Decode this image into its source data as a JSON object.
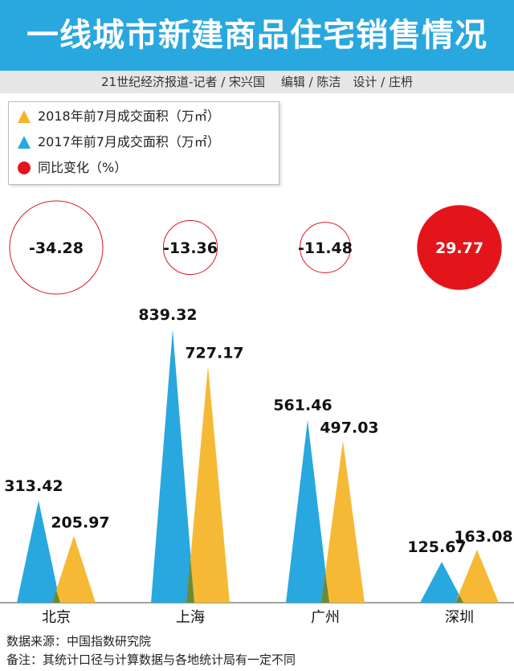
{
  "title": "一线城市新建商品住宅销售情况",
  "credit": "21世纪经济报道-记者 / 宋兴国　 编辑 / 陈洁　设计 / 庄枬",
  "legend": [
    {
      "label": "2018年前7月成交面积（万㎡）",
      "marker": "triangle",
      "color": "#f5b52b"
    },
    {
      "label": "2017年前7月成交面积（万㎡）",
      "marker": "triangle",
      "color": "#29a7df"
    },
    {
      "label": "同比变化（%）",
      "marker": "circle",
      "color": "#e3151a"
    }
  ],
  "footer": {
    "source": "数据来源：中国指数研究院",
    "note": "备注：其统计口径与计算数据与各地统计局有一定不同"
  },
  "colors": {
    "y2017": "#29a7df",
    "y2018": "#f5b52b",
    "change": "#e3151a",
    "overlap": "#6a8a3a",
    "header": "#29a7df"
  },
  "chart_data": {
    "type": "bar",
    "categories": [
      "北京",
      "上海",
      "广州",
      "深圳"
    ],
    "series": [
      {
        "name": "2017年前7月成交面积（万㎡）",
        "values": [
          313.42,
          839.32,
          561.46,
          125.67
        ]
      },
      {
        "name": "2018年前7月成交面积（万㎡）",
        "values": [
          205.97,
          727.17,
          497.03,
          163.08
        ]
      },
      {
        "name": "同比变化（%）",
        "values": [
          -34.28,
          -13.36,
          -11.48,
          29.77
        ]
      }
    ],
    "value_labels_2017": [
      "313.42",
      "839.32",
      "561.46",
      "125.67"
    ],
    "value_labels_2018": [
      "205.97",
      "727.17",
      "497.03",
      "163.08"
    ],
    "change_labels": [
      "-34.28",
      "-13.36",
      "-11.48",
      "29.77"
    ],
    "title": "",
    "xlabel": "",
    "ylabel": "",
    "legend_placement": "top-left",
    "grid": false
  }
}
